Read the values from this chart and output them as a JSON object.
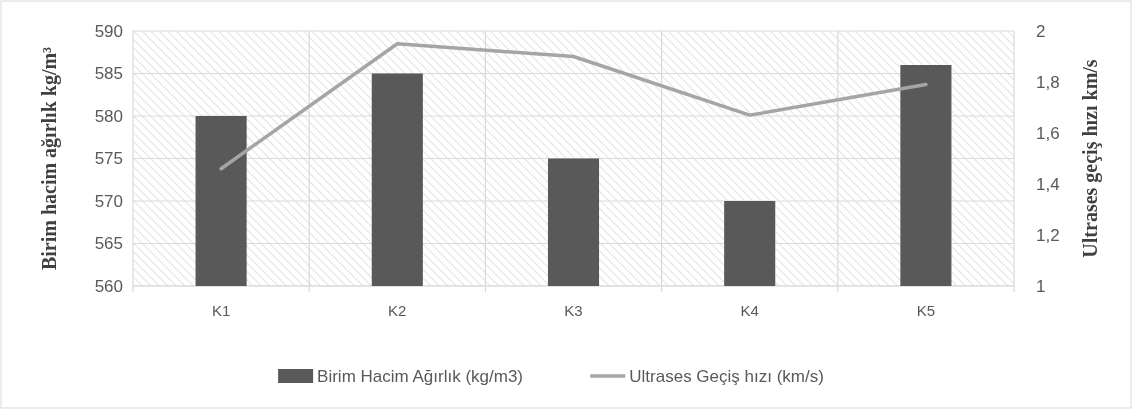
{
  "chart_data": {
    "type": "bar",
    "categories": [
      "K1",
      "K2",
      "K3",
      "K4",
      "K5"
    ],
    "series": [
      {
        "name": "Birim Hacim Ağırlık (kg/m3)",
        "color": "#595959",
        "values": [
          580,
          585,
          575,
          570,
          586
        ]
      },
      {
        "name": "Ultrases Geçiş hızı (km/s)",
        "type": "line",
        "axis": "y2",
        "color": "#a5a5a5",
        "values": [
          1.46,
          1.95,
          1.9,
          1.67,
          1.79
        ]
      }
    ],
    "ylabel": "Birim hacim ağırlık kg/m³",
    "y2label": "Ultrases geçiş hızı km/s",
    "ylim": [
      560,
      590
    ],
    "yticks": [
      560,
      565,
      570,
      575,
      580,
      585,
      590
    ],
    "y2lim": [
      1,
      2
    ],
    "y2ticks": [
      1,
      {
        "value": 1.2,
        "label": "1,2"
      },
      {
        "value": 1.4,
        "label": "1,4"
      },
      {
        "value": 1.6,
        "label": "1,6"
      },
      {
        "value": 1.8,
        "label": "1,8"
      },
      2
    ],
    "grid": true,
    "legend": "bottom"
  }
}
